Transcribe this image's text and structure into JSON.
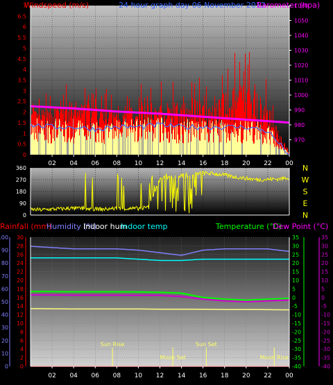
{
  "header": {
    "wind_label": "Windspeed (m/s)",
    "title": "24 hour graph day  06 November 2012",
    "baro_label": "Barometer (hpa)"
  },
  "lower_header": {
    "rain": "Rainfall (mm)",
    "humidity": "Humidity (%)",
    "indoor_hum": "Indoor hum",
    "indoor_temp": "Indoor temp",
    "temperature": "Temperature (°C)",
    "dewpoint": "Dew Point (°C)"
  },
  "compass": [
    "N",
    "W",
    "S",
    "E",
    "N"
  ],
  "x_ticks": [
    "02",
    "04",
    "06",
    "08",
    "10",
    "12",
    "14",
    "16",
    "18",
    "20",
    "22",
    "00"
  ],
  "events": [
    {
      "label": "Sun Rise",
      "hour": 7.6,
      "row": 0
    },
    {
      "label": "Sun Set",
      "hour": 16.3,
      "row": 0
    },
    {
      "label": "Moon Set",
      "hour": 13.2,
      "row": 1
    },
    {
      "label": "Moon Rise",
      "hour": 22.6,
      "row": 1
    }
  ],
  "colors": {
    "wind": "#ff0000",
    "gust": "#ff0000",
    "wind_avg": "#3a6bff",
    "bar_fill": "#ffff99",
    "barometer": "#ff00ff",
    "direction": "#ffff00",
    "humidity": "#8080ff",
    "indoor_hum": "#00ffff",
    "temperature": "#00ff00",
    "dewpoint": "#d000d0",
    "indoor_temp": "#ffff80",
    "rain": "#ff0000",
    "sun": "#ffff66"
  },
  "chart_data": [
    {
      "name": "wind",
      "type": "bar",
      "x_range": [
        0,
        24
      ],
      "x_ticks": [
        "02",
        "04",
        "06",
        "08",
        "10",
        "12",
        "14",
        "16",
        "18",
        "20",
        "22",
        "00"
      ],
      "y_left": {
        "label": "Windspeed (m/s)",
        "range": [
          0,
          7
        ],
        "ticks": [
          "0",
          "0.5",
          "1",
          "1.5",
          "2",
          "2.5",
          "3",
          "3.5",
          "4",
          "4.5",
          "5",
          "5.5",
          "6",
          "6.5",
          "7"
        ]
      },
      "y_right": {
        "label": "Barometer (hpa)",
        "range": [
          960,
          1060
        ],
        "ticks": [
          "970",
          "980",
          "990",
          "1000",
          "1010",
          "1020",
          "1030",
          "1040",
          "1050",
          "1060"
        ]
      },
      "barometer": {
        "x": [
          0,
          4,
          8,
          12,
          16,
          20,
          24
        ],
        "values": [
          992.5,
          991,
          989,
          987.5,
          985.5,
          983.5,
          981.5
        ]
      },
      "gust_envelope": {
        "x": [
          0,
          2,
          4,
          6,
          8,
          10,
          12,
          14,
          16,
          18,
          20,
          22,
          24
        ],
        "values": [
          2.6,
          3.0,
          3.6,
          3.2,
          3.0,
          3.4,
          3.6,
          3.4,
          3.8,
          4.2,
          5.6,
          3.4,
          0.2
        ]
      },
      "mean_level": {
        "x": [
          0,
          2,
          4,
          6,
          8,
          10,
          12,
          14,
          16,
          18,
          20,
          22,
          24
        ],
        "values": [
          1.4,
          1.3,
          1.3,
          1.2,
          1.3,
          1.3,
          1.4,
          1.3,
          1.3,
          1.3,
          1.3,
          1.1,
          0.0
        ]
      }
    },
    {
      "name": "wind_direction",
      "type": "scatter",
      "x_range": [
        0,
        24
      ],
      "y_range": [
        0,
        360
      ],
      "y_ticks": [
        "0",
        "90",
        "180",
        "270",
        "360"
      ],
      "series": [
        {
          "name": "direction",
          "x": [
            0,
            1,
            2,
            3,
            4,
            5,
            6,
            7,
            8,
            9,
            10,
            11,
            12,
            13,
            14,
            15,
            16,
            17,
            18,
            19,
            20,
            21,
            22,
            23,
            24
          ],
          "values": [
            42,
            40,
            45,
            48,
            52,
            50,
            46,
            45,
            52,
            48,
            50,
            60,
            280,
            290,
            300,
            315,
            320,
            315,
            305,
            290,
            280,
            270,
            272,
            275,
            285
          ]
        }
      ]
    },
    {
      "name": "temperature_humidity",
      "type": "line",
      "x_range": [
        0,
        24
      ],
      "y_left_humidity": {
        "range": [
          0,
          100
        ],
        "ticks": [
          "0",
          "10",
          "20",
          "30",
          "40",
          "50",
          "60",
          "70",
          "80",
          "90",
          "100"
        ]
      },
      "y_left_rain": {
        "range": [
          0,
          30
        ],
        "ticks": [
          "0",
          "2",
          "4",
          "6",
          "8",
          "10",
          "12",
          "14",
          "16",
          "18",
          "20",
          "22",
          "24",
          "26",
          "28",
          "30"
        ]
      },
      "y_right_temp": {
        "range": [
          -40,
          35
        ],
        "ticks": [
          "35",
          "30",
          "25",
          "20",
          "15",
          "10",
          "5",
          "0",
          "-5",
          "-10",
          "-15",
          "-20",
          "-25",
          "-30",
          "-35",
          "-40"
        ]
      },
      "series": [
        {
          "name": "Humidity (%)",
          "axis": "humidity",
          "x": [
            0,
            4,
            8,
            10,
            12,
            14,
            16,
            18,
            20,
            22,
            24
          ],
          "values": [
            93,
            91,
            91,
            90,
            88,
            86,
            90,
            91,
            91,
            91,
            89
          ]
        },
        {
          "name": "Indoor hum",
          "axis": "humidity",
          "x": [
            0,
            4,
            8,
            10,
            12,
            14,
            16,
            18,
            20,
            22,
            24
          ],
          "values": [
            84,
            84,
            84,
            83,
            82,
            82,
            83,
            83,
            83,
            83,
            83
          ]
        },
        {
          "name": "Temperature (°C)",
          "axis": "temp",
          "x": [
            0,
            4,
            8,
            10,
            12,
            14,
            16,
            18,
            20,
            22,
            24
          ],
          "values": [
            3.5,
            3.3,
            3.3,
            3.2,
            3.0,
            2.5,
            0.0,
            -1.0,
            -1.5,
            -1.0,
            -0.5
          ]
        },
        {
          "name": "Dew Point (°C)",
          "axis": "temp",
          "x": [
            0,
            4,
            8,
            10,
            12,
            14,
            16,
            18,
            20,
            22,
            24
          ],
          "values": [
            1.5,
            1.3,
            1.3,
            1.2,
            1.2,
            0.5,
            -1.0,
            -2.0,
            -2.5,
            -2.0,
            -1.5
          ]
        },
        {
          "name": "Indoor temp",
          "axis": "temp",
          "x": [
            0,
            4,
            8,
            10,
            12,
            14,
            16,
            18,
            20,
            22,
            24
          ],
          "values": [
            -6.5,
            -6.7,
            -6.7,
            -6.7,
            -6.8,
            -6.8,
            -6.9,
            -7.0,
            -7.0,
            -7.1,
            -7.2
          ]
        },
        {
          "name": "Rainfall (mm)",
          "axis": "rain",
          "x": [
            0,
            24
          ],
          "values": [
            0,
            0
          ]
        }
      ]
    }
  ]
}
